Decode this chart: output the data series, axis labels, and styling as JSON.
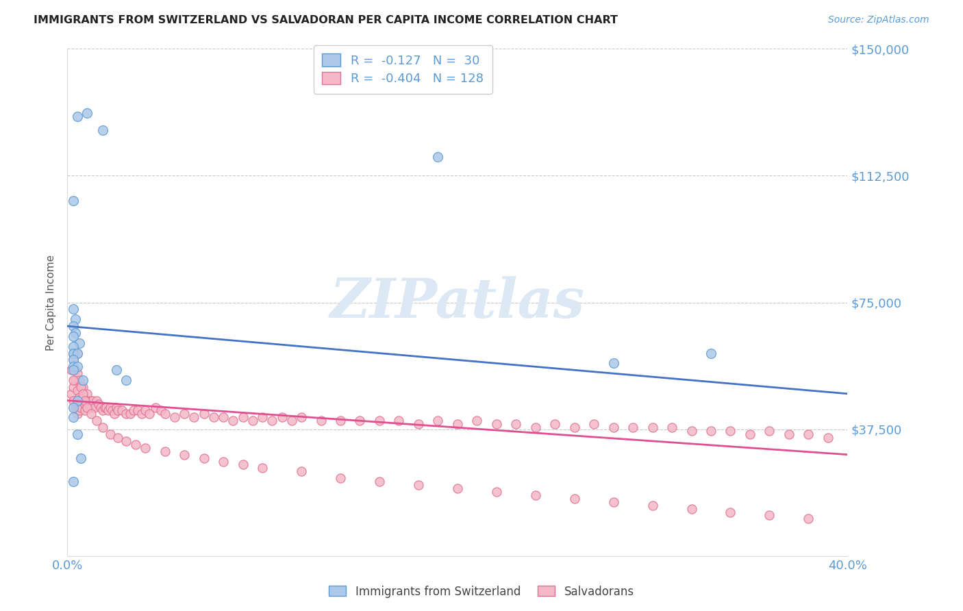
{
  "title": "IMMIGRANTS FROM SWITZERLAND VS SALVADORAN PER CAPITA INCOME CORRELATION CHART",
  "source": "Source: ZipAtlas.com",
  "ylabel": "Per Capita Income",
  "xlim": [
    0.0,
    0.4
  ],
  "ylim": [
    0,
    150000
  ],
  "yticks": [
    0,
    37500,
    75000,
    112500,
    150000
  ],
  "ytick_labels": [
    "",
    "$37,500",
    "$75,000",
    "$112,500",
    "$150,000"
  ],
  "xticks": [
    0.0,
    0.1,
    0.2,
    0.3,
    0.4
  ],
  "xtick_labels": [
    "0.0%",
    "",
    "",
    "",
    "40.0%"
  ],
  "legend_R1": "-0.127",
  "legend_N1": "30",
  "legend_R2": "-0.404",
  "legend_N2": "128",
  "blue_face": "#adc8e8",
  "blue_edge": "#5b9bd5",
  "blue_line": "#4472c4",
  "pink_face": "#f4b8c8",
  "pink_edge": "#e07090",
  "pink_line": "#e05090",
  "tick_color": "#5b9bd5",
  "grid_color": "#c8c8c8",
  "watermark_color": "#dce8f4",
  "blue_trend_x": [
    0.0,
    0.4
  ],
  "blue_trend_y": [
    68000,
    48000
  ],
  "pink_trend_x": [
    0.0,
    0.4
  ],
  "pink_trend_y": [
    46000,
    30000
  ],
  "blue_x": [
    0.005,
    0.01,
    0.018,
    0.003,
    0.003,
    0.004,
    0.003,
    0.004,
    0.003,
    0.006,
    0.003,
    0.003,
    0.003,
    0.005,
    0.003,
    0.003,
    0.005,
    0.003,
    0.19,
    0.025,
    0.03,
    0.008,
    0.28,
    0.33,
    0.005,
    0.003,
    0.003,
    0.005,
    0.007,
    0.003
  ],
  "blue_y": [
    130000,
    131000,
    126000,
    105000,
    73000,
    70000,
    68000,
    66000,
    65000,
    63000,
    62000,
    60000,
    60000,
    60000,
    58000,
    56000,
    56000,
    55000,
    118000,
    55000,
    52000,
    52000,
    57000,
    60000,
    46000,
    44000,
    41000,
    36000,
    29000,
    22000
  ],
  "pink_x": [
    0.002,
    0.003,
    0.003,
    0.004,
    0.004,
    0.005,
    0.005,
    0.005,
    0.005,
    0.006,
    0.006,
    0.006,
    0.007,
    0.007,
    0.008,
    0.008,
    0.009,
    0.009,
    0.01,
    0.01,
    0.011,
    0.012,
    0.012,
    0.013,
    0.014,
    0.015,
    0.016,
    0.017,
    0.018,
    0.019,
    0.02,
    0.021,
    0.022,
    0.023,
    0.024,
    0.025,
    0.026,
    0.028,
    0.03,
    0.032,
    0.034,
    0.036,
    0.038,
    0.04,
    0.042,
    0.045,
    0.048,
    0.05,
    0.055,
    0.06,
    0.065,
    0.07,
    0.075,
    0.08,
    0.085,
    0.09,
    0.095,
    0.1,
    0.105,
    0.11,
    0.115,
    0.12,
    0.13,
    0.14,
    0.15,
    0.16,
    0.17,
    0.18,
    0.19,
    0.2,
    0.21,
    0.22,
    0.23,
    0.24,
    0.25,
    0.26,
    0.27,
    0.28,
    0.29,
    0.3,
    0.31,
    0.32,
    0.33,
    0.34,
    0.35,
    0.36,
    0.37,
    0.38,
    0.39,
    0.003,
    0.004,
    0.005,
    0.006,
    0.007,
    0.008,
    0.009,
    0.01,
    0.012,
    0.015,
    0.018,
    0.022,
    0.026,
    0.03,
    0.035,
    0.04,
    0.05,
    0.06,
    0.07,
    0.08,
    0.09,
    0.1,
    0.12,
    0.14,
    0.16,
    0.18,
    0.2,
    0.22,
    0.24,
    0.26,
    0.28,
    0.3,
    0.32,
    0.34,
    0.36,
    0.38,
    0.002,
    0.003,
    0.005
  ],
  "pink_y": [
    48000,
    50000,
    46000,
    44000,
    52000,
    49000,
    46000,
    44000,
    42000,
    47000,
    45000,
    43000,
    46000,
    44000,
    50000,
    47000,
    45000,
    43000,
    48000,
    46000,
    45000,
    46000,
    44000,
    46000,
    44000,
    46000,
    45000,
    44000,
    43000,
    44000,
    44000,
    43000,
    44000,
    43000,
    42000,
    44000,
    43000,
    43000,
    42000,
    42000,
    43000,
    43000,
    42000,
    43000,
    42000,
    44000,
    43000,
    42000,
    41000,
    42000,
    41000,
    42000,
    41000,
    41000,
    40000,
    41000,
    40000,
    41000,
    40000,
    41000,
    40000,
    41000,
    40000,
    40000,
    40000,
    40000,
    40000,
    39000,
    40000,
    39000,
    40000,
    39000,
    39000,
    38000,
    39000,
    38000,
    39000,
    38000,
    38000,
    38000,
    38000,
    37000,
    37000,
    37000,
    36000,
    37000,
    36000,
    36000,
    35000,
    58000,
    55000,
    54000,
    52000,
    50000,
    48000,
    46000,
    44000,
    42000,
    40000,
    38000,
    36000,
    35000,
    34000,
    33000,
    32000,
    31000,
    30000,
    29000,
    28000,
    27000,
    26000,
    25000,
    23000,
    22000,
    21000,
    20000,
    19000,
    18000,
    17000,
    16000,
    15000,
    14000,
    13000,
    12000,
    11000,
    55000,
    52000,
    60000
  ]
}
